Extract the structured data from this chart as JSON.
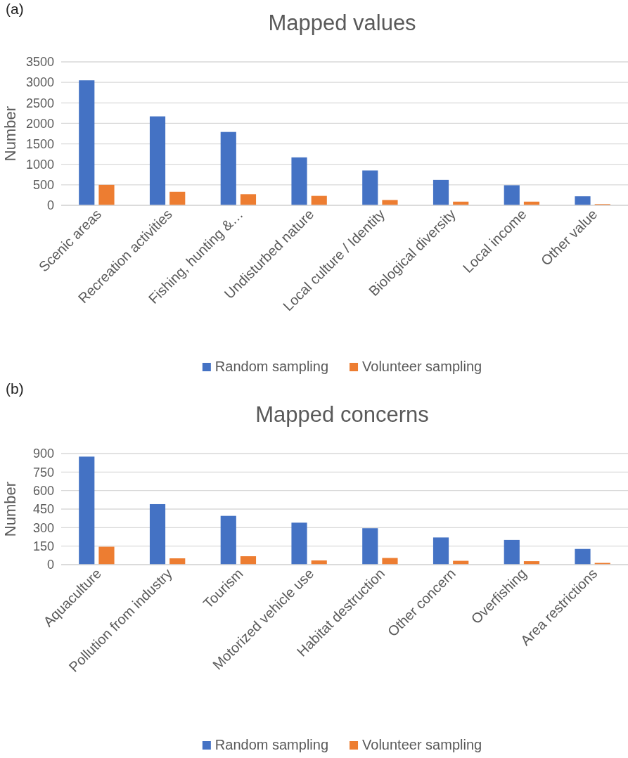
{
  "chart_data": [
    {
      "type": "bar",
      "title": "Mapped values",
      "ylabel": "Number",
      "annotations": [
        "(a)"
      ],
      "categories": [
        "Scenic areas",
        "Recreation activities",
        "Fishing, hunting &…",
        "Undisturbed nature",
        "Local culture / Identity",
        "Biological diversity",
        "Local income",
        "Other value"
      ],
      "series": [
        {
          "name": "Random sampling",
          "color": "#4472c4",
          "values": [
            3050,
            2170,
            1790,
            1170,
            850,
            620,
            490,
            220
          ]
        },
        {
          "name": "Volunteer sampling",
          "color": "#ed7d31",
          "values": [
            500,
            330,
            270,
            230,
            130,
            90,
            90,
            30
          ]
        }
      ],
      "ylim": [
        0,
        3500
      ],
      "yticks": [
        0,
        500,
        1000,
        1500,
        2000,
        2500,
        3000,
        3500
      ],
      "grid": "y",
      "legend": "bottom"
    },
    {
      "type": "bar",
      "title": "Mapped concerns",
      "ylabel": "Number",
      "annotations": [
        "(b)"
      ],
      "categories": [
        "Aquaculture",
        "Pollution from industry",
        "Tourism",
        "Motorized vehicle use",
        "Habitat destruction",
        "Other concern",
        "Overfishing",
        "Area restrictions"
      ],
      "series": [
        {
          "name": "Random sampling",
          "color": "#4472c4",
          "values": [
            875,
            490,
            395,
            340,
            295,
            220,
            200,
            127
          ]
        },
        {
          "name": "Volunteer sampling",
          "color": "#ed7d31",
          "values": [
            145,
            51,
            68,
            34,
            54,
            31,
            28,
            14
          ]
        }
      ],
      "ylim": [
        0,
        900
      ],
      "yticks": [
        0,
        150,
        300,
        450,
        600,
        750,
        900
      ],
      "grid": "y",
      "legend": "bottom"
    }
  ]
}
